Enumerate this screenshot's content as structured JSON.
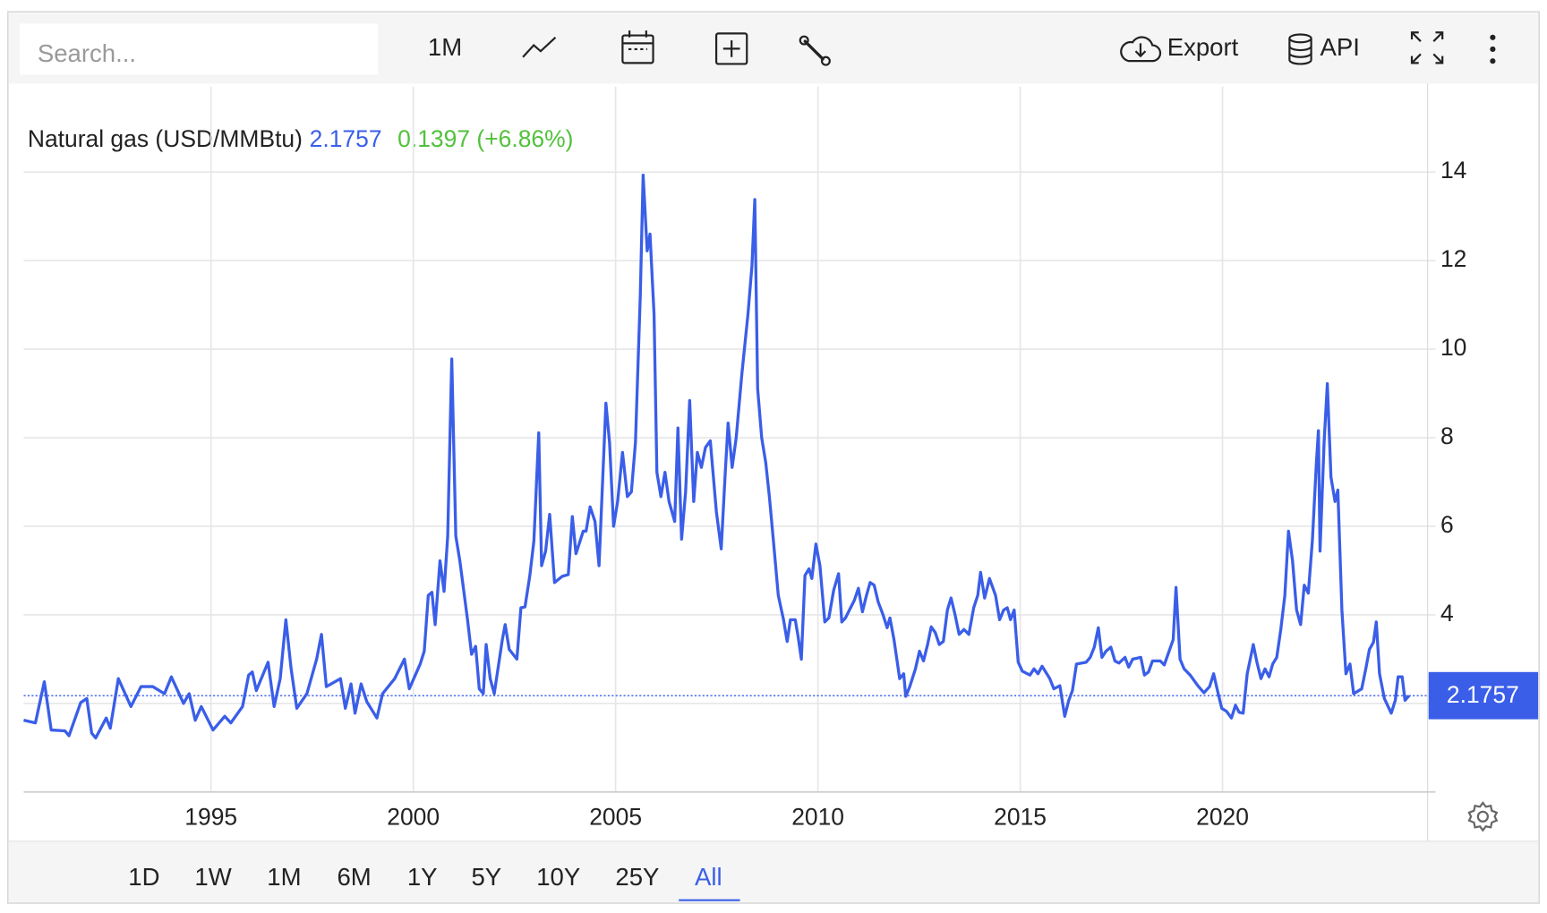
{
  "toolbar": {
    "search_placeholder": "Search...",
    "interval": "1M",
    "export": "Export",
    "api": "API"
  },
  "ranges": {
    "buttons": [
      "1D",
      "1W",
      "1M",
      "6M",
      "1Y",
      "5Y",
      "10Y",
      "25Y",
      "All"
    ],
    "active": 8
  },
  "chart_data": {
    "type": "line",
    "last_value": 2.1757,
    "change": "0.1397 (+6.86%)",
    "change_color": "#52c23c",
    "grid": true,
    "xlim": [
      1990.37,
      2025.02
    ],
    "ylim": [
      0,
      15.93
    ],
    "xticks": [
      1995,
      2000,
      2005,
      2010,
      2015,
      2020
    ],
    "yticks": [
      2,
      4,
      6,
      8,
      10,
      12,
      14
    ],
    "x": [
      1990.37,
      1990.66,
      1990.88,
      1991.05,
      1991.39,
      1991.49,
      1991.78,
      1991.93,
      1992.05,
      1992.15,
      1992.41,
      1992.51,
      1992.71,
      1993.02,
      1993.27,
      1993.56,
      1993.85,
      1994.02,
      1994.32,
      1994.46,
      1994.61,
      1994.76,
      1995.05,
      1995.34,
      1995.49,
      1995.78,
      1995.93,
      1996.02,
      1996.12,
      1996.41,
      1996.56,
      1996.71,
      1996.85,
      1996.98,
      1997.12,
      1997.37,
      1997.61,
      1997.73,
      1997.85,
      1998.2,
      1998.32,
      1998.46,
      1998.56,
      1998.71,
      1998.85,
      1999.1,
      1999.24,
      1999.54,
      1999.78,
      1999.9,
      2000.17,
      2000.27,
      2000.37,
      2000.46,
      2000.54,
      2000.66,
      2000.76,
      2000.85,
      2000.95,
      2001.05,
      2001.15,
      2001.34,
      2001.44,
      2001.54,
      2001.63,
      2001.73,
      2001.8,
      2001.9,
      2002.0,
      2002.2,
      2002.27,
      2002.37,
      2002.56,
      2002.66,
      2002.76,
      2002.88,
      2002.98,
      2003.1,
      2003.17,
      2003.27,
      2003.37,
      2003.49,
      2003.68,
      2003.83,
      2003.93,
      2004.02,
      2004.2,
      2004.27,
      2004.37,
      2004.49,
      2004.59,
      2004.76,
      2004.85,
      2004.95,
      2005.05,
      2005.17,
      2005.29,
      2005.39,
      2005.49,
      2005.61,
      2005.68,
      2005.78,
      2005.85,
      2005.95,
      2006.02,
      2006.12,
      2006.22,
      2006.32,
      2006.46,
      2006.54,
      2006.63,
      2006.73,
      2006.83,
      2006.93,
      2007.02,
      2007.12,
      2007.22,
      2007.34,
      2007.49,
      2007.61,
      2007.71,
      2007.78,
      2007.88,
      2007.98,
      2008.12,
      2008.27,
      2008.37,
      2008.44,
      2008.51,
      2008.61,
      2008.71,
      2008.8,
      2008.9,
      2009.02,
      2009.15,
      2009.24,
      2009.32,
      2009.44,
      2009.51,
      2009.59,
      2009.68,
      2009.78,
      2009.85,
      2009.95,
      2010.05,
      2010.17,
      2010.27,
      2010.39,
      2010.51,
      2010.59,
      2010.68,
      2010.9,
      2011.0,
      2011.1,
      2011.2,
      2011.29,
      2011.39,
      2011.49,
      2011.61,
      2011.71,
      2011.78,
      2011.88,
      2012.02,
      2012.12,
      2012.17,
      2012.27,
      2012.41,
      2012.51,
      2012.61,
      2012.71,
      2012.8,
      2012.9,
      2013.0,
      2013.1,
      2013.2,
      2013.29,
      2013.39,
      2013.49,
      2013.61,
      2013.73,
      2013.85,
      2013.95,
      2014.02,
      2014.12,
      2014.24,
      2014.39,
      2014.49,
      2014.59,
      2014.68,
      2014.76,
      2014.85,
      2014.95,
      2015.05,
      2015.24,
      2015.34,
      2015.44,
      2015.54,
      2015.73,
      2015.83,
      2015.98,
      2016.1,
      2016.2,
      2016.29,
      2016.39,
      2016.63,
      2016.73,
      2016.83,
      2016.93,
      2017.02,
      2017.12,
      2017.24,
      2017.34,
      2017.44,
      2017.59,
      2017.68,
      2017.78,
      2017.98,
      2018.07,
      2018.17,
      2018.27,
      2018.46,
      2018.56,
      2018.66,
      2018.78,
      2018.85,
      2018.95,
      2019.05,
      2019.2,
      2019.39,
      2019.54,
      2019.68,
      2019.78,
      2019.88,
      2019.98,
      2020.1,
      2020.22,
      2020.32,
      2020.41,
      2020.51,
      2020.61,
      2020.76,
      2020.85,
      2020.95,
      2021.05,
      2021.15,
      2021.24,
      2021.34,
      2021.44,
      2021.54,
      2021.63,
      2021.73,
      2021.83,
      2021.93,
      2022.02,
      2022.12,
      2022.22,
      2022.32,
      2022.37,
      2022.41,
      2022.51,
      2022.59,
      2022.68,
      2022.78,
      2022.85,
      2022.95,
      2023.05,
      2023.15,
      2023.24,
      2023.44,
      2023.54,
      2023.63,
      2023.73,
      2023.8,
      2023.88,
      2024.0,
      2024.17,
      2024.27,
      2024.34,
      2024.44,
      2024.51,
      2024.61
    ],
    "series": [
      {
        "name": "Natural gas (USD/MMBtu)",
        "color": "#3a5ee8",
        "values": [
          1.62,
          1.56,
          2.49,
          1.4,
          1.38,
          1.27,
          2.02,
          2.11,
          1.33,
          1.22,
          1.67,
          1.44,
          2.56,
          1.93,
          2.38,
          2.38,
          2.22,
          2.6,
          2.0,
          2.22,
          1.62,
          1.93,
          1.4,
          1.71,
          1.56,
          1.93,
          2.64,
          2.71,
          2.29,
          2.93,
          1.93,
          2.56,
          3.89,
          2.78,
          1.89,
          2.22,
          3.0,
          3.56,
          2.38,
          2.56,
          1.89,
          2.44,
          1.78,
          2.44,
          2.04,
          1.67,
          2.22,
          2.56,
          3.0,
          2.33,
          2.89,
          3.18,
          4.44,
          4.51,
          3.78,
          5.22,
          4.53,
          5.78,
          9.78,
          5.78,
          5.22,
          3.89,
          3.11,
          3.29,
          2.33,
          2.22,
          3.33,
          2.56,
          2.22,
          3.44,
          3.78,
          3.22,
          3.0,
          4.16,
          4.18,
          4.89,
          5.67,
          8.11,
          5.11,
          5.44,
          6.27,
          4.73,
          4.87,
          4.91,
          6.22,
          5.38,
          5.89,
          5.89,
          6.44,
          6.11,
          5.11,
          8.78,
          7.89,
          6.0,
          6.56,
          7.67,
          6.67,
          6.78,
          7.89,
          11.22,
          13.93,
          12.22,
          12.6,
          10.78,
          7.22,
          6.67,
          7.22,
          6.56,
          6.11,
          8.22,
          5.71,
          6.78,
          8.84,
          6.56,
          7.67,
          7.33,
          7.78,
          7.93,
          6.33,
          5.49,
          7.22,
          8.33,
          7.33,
          8.0,
          9.44,
          10.78,
          11.89,
          13.38,
          9.11,
          8.0,
          7.44,
          6.67,
          5.67,
          4.44,
          3.89,
          3.4,
          3.89,
          3.89,
          3.51,
          3.0,
          4.89,
          5.04,
          4.82,
          5.6,
          5.11,
          3.84,
          3.93,
          4.56,
          4.93,
          3.84,
          3.93,
          4.33,
          4.6,
          4.07,
          4.44,
          4.73,
          4.67,
          4.29,
          4.0,
          3.71,
          3.93,
          3.44,
          2.56,
          2.67,
          2.16,
          2.38,
          2.78,
          3.18,
          2.96,
          3.33,
          3.73,
          3.6,
          3.33,
          3.4,
          4.11,
          4.38,
          4.0,
          3.56,
          3.67,
          3.56,
          4.16,
          4.44,
          4.96,
          4.38,
          4.82,
          4.44,
          3.89,
          4.11,
          4.16,
          3.89,
          4.11,
          2.93,
          2.73,
          2.64,
          2.78,
          2.67,
          2.84,
          2.56,
          2.33,
          2.4,
          1.71,
          2.07,
          2.29,
          2.89,
          2.93,
          3.04,
          3.27,
          3.71,
          3.04,
          3.18,
          3.27,
          2.96,
          2.91,
          3.04,
          2.82,
          3.0,
          3.04,
          2.64,
          2.71,
          2.96,
          2.96,
          2.87,
          3.13,
          3.44,
          4.62,
          3.0,
          2.78,
          2.64,
          2.4,
          2.24,
          2.38,
          2.67,
          2.27,
          1.89,
          1.82,
          1.67,
          1.96,
          1.8,
          1.78,
          2.67,
          3.33,
          2.93,
          2.56,
          2.78,
          2.6,
          2.89,
          3.04,
          3.67,
          4.44,
          5.89,
          5.22,
          4.11,
          3.78,
          4.67,
          4.49,
          5.67,
          7.44,
          8.16,
          5.44,
          7.89,
          9.22,
          7.11,
          6.56,
          6.82,
          4.11,
          2.67,
          2.89,
          2.22,
          2.33,
          2.78,
          3.22,
          3.38,
          3.84,
          2.67,
          2.11,
          1.78,
          2.07,
          2.6,
          2.6,
          2.07,
          2.1757
        ]
      }
    ]
  }
}
